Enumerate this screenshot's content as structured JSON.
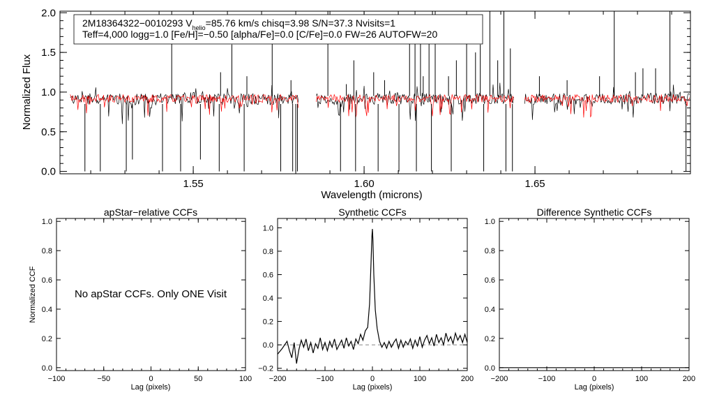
{
  "chart_data": [
    {
      "type": "line",
      "title": "",
      "xlabel": "Wavelength (microns)",
      "ylabel": "Normalized Flux",
      "xlim": [
        1.511,
        1.6955
      ],
      "ylim": [
        -0.03,
        2.02
      ],
      "xticks": [
        {
          "value": 1.55,
          "label": "1.55"
        },
        {
          "value": 1.6,
          "label": "1.60"
        },
        {
          "value": 1.65,
          "label": "1.65"
        }
      ],
      "yticks": [
        {
          "value": 0.0,
          "label": "0.0"
        },
        {
          "value": 0.5,
          "label": "0.5"
        },
        {
          "value": 1.0,
          "label": "1.0"
        },
        {
          "value": 1.5,
          "label": "1.5"
        },
        {
          "value": 2.0,
          "label": "2.0"
        }
      ],
      "info_box": {
        "line1_a": "2M18364322−0010293  V",
        "line1_sub": "helio",
        "line1_b": "=85.76 km/s  chisq=3.98  S/N=37.3  Nvisits=1",
        "line2": "Teff=4,000 logg=1.0 [Fe/H]=−0.50 [alpha/Fe]=0.0 [C/Fe]=0.0 FW=26 AUTOFW=20"
      },
      "chips": [
        [
          1.514,
          1.581
        ],
        [
          1.586,
          1.644
        ],
        [
          1.647,
          1.6955
        ]
      ],
      "series": [
        {
          "name": "observed spectrum",
          "color": "#000000",
          "continuum": 0.92
        },
        {
          "name": "synthetic model",
          "color": "#ff0000",
          "continuum": 0.92
        }
      ],
      "emission_spikes": [
        [
          1.5437,
          2.02
        ],
        [
          1.558,
          1.25
        ],
        [
          1.5613,
          1.6
        ],
        [
          1.5657,
          1.2
        ],
        [
          1.5731,
          1.75
        ],
        [
          1.5786,
          1.15
        ],
        [
          1.5894,
          2.02
        ],
        [
          1.5948,
          1.1
        ],
        [
          1.597,
          1.4
        ],
        [
          1.6028,
          1.25
        ],
        [
          1.606,
          1.15
        ],
        [
          1.6133,
          1.85
        ],
        [
          1.6149,
          2.02
        ],
        [
          1.6165,
          1.65
        ],
        [
          1.6173,
          1.2
        ],
        [
          1.619,
          1.9
        ],
        [
          1.6208,
          2.02
        ],
        [
          1.6247,
          1.2
        ],
        [
          1.627,
          1.4
        ],
        [
          1.63,
          1.9
        ],
        [
          1.6326,
          1.5
        ],
        [
          1.634,
          1.6
        ],
        [
          1.6368,
          2.02
        ],
        [
          1.6391,
          1.4
        ],
        [
          1.6409,
          2.02
        ],
        [
          1.6428,
          1.55
        ],
        [
          1.6513,
          1.2
        ],
        [
          1.6594,
          1.15
        ],
        [
          1.6689,
          1.2
        ],
        [
          1.6732,
          2.02
        ],
        [
          1.6794,
          1.25
        ],
        [
          1.6816,
          1.3
        ],
        [
          1.6853,
          1.3
        ],
        [
          1.6895,
          2.02
        ]
      ],
      "absorption_spikes": [
        [
          1.5183,
          0.0
        ],
        [
          1.5228,
          0.0
        ],
        [
          1.5304,
          0.0
        ],
        [
          1.5322,
          0.15
        ],
        [
          1.541,
          0.0
        ],
        [
          1.5463,
          0.0
        ],
        [
          1.5521,
          0.15
        ],
        [
          1.5576,
          0.0
        ],
        [
          1.5649,
          0.0
        ],
        [
          1.5756,
          0.0
        ],
        [
          1.5791,
          0.0
        ],
        [
          1.58,
          0.0
        ],
        [
          1.5805,
          0.0
        ],
        [
          1.5931,
          0.0
        ],
        [
          1.5975,
          0.0
        ],
        [
          1.6041,
          0.0
        ],
        [
          1.6102,
          0.0
        ],
        [
          1.6153,
          0.0
        ],
        [
          1.6197,
          0.0
        ],
        [
          1.6255,
          0.0
        ],
        [
          1.635,
          0.0
        ],
        [
          1.6415,
          0.0
        ],
        [
          1.6434,
          0.0
        ],
        [
          1.6942,
          0.0
        ]
      ]
    },
    {
      "type": "line",
      "title": "apStar−relative CCFs",
      "xlabel": "Lag (pixels)",
      "ylabel": "Normalized CCF",
      "xlim": [
        -100,
        100
      ],
      "ylim": [
        -0.02,
        1.02
      ],
      "xticks": [
        {
          "value": -100,
          "label": "−100"
        },
        {
          "value": -50,
          "label": "−50"
        },
        {
          "value": 0,
          "label": "0"
        },
        {
          "value": 50,
          "label": "50"
        },
        {
          "value": 100,
          "label": "100"
        }
      ],
      "yticks": [
        {
          "value": 0.0,
          "label": "0.0"
        },
        {
          "value": 0.2,
          "label": "0.2"
        },
        {
          "value": 0.4,
          "label": "0.4"
        },
        {
          "value": 0.6,
          "label": "0.6"
        },
        {
          "value": 0.8,
          "label": "0.8"
        },
        {
          "value": 1.0,
          "label": "1.0"
        }
      ],
      "annotation": "No apStar CCFs.  Only ONE Visit",
      "series": []
    },
    {
      "type": "line",
      "title": "Synthetic CCFs",
      "xlabel": "Lag (pixels)",
      "ylabel": "",
      "xlim": [
        -200,
        200
      ],
      "ylim": [
        -0.22,
        1.08
      ],
      "xticks": [
        {
          "value": -200,
          "label": "−200"
        },
        {
          "value": -100,
          "label": "−100"
        },
        {
          "value": 0,
          "label": "0"
        },
        {
          "value": 100,
          "label": "100"
        },
        {
          "value": 200,
          "label": "200"
        }
      ],
      "yticks": [
        {
          "value": -0.2,
          "label": "−0.2"
        },
        {
          "value": 0.0,
          "label": "0.0"
        },
        {
          "value": 0.2,
          "label": "0.2"
        },
        {
          "value": 0.4,
          "label": "0.4"
        },
        {
          "value": 0.6,
          "label": "0.6"
        },
        {
          "value": 0.8,
          "label": "0.8"
        },
        {
          "value": 1.0,
          "label": "1.0"
        }
      ],
      "zero_line": 0.0,
      "series": [
        {
          "name": "synthetic CCF",
          "x": [
            -200,
            -190,
            -180,
            -175,
            -170,
            -165,
            -160,
            -155,
            -150,
            -145,
            -140,
            -135,
            -130,
            -125,
            -120,
            -115,
            -110,
            -105,
            -100,
            -95,
            -90,
            -85,
            -80,
            -75,
            -70,
            -65,
            -60,
            -55,
            -50,
            -45,
            -40,
            -35,
            -30,
            -25,
            -20,
            -15,
            -10,
            -6,
            -3,
            -1,
            0,
            1,
            3,
            6,
            10,
            15,
            20,
            25,
            30,
            35,
            40,
            45,
            50,
            55,
            60,
            65,
            70,
            75,
            80,
            85,
            90,
            95,
            100,
            105,
            110,
            115,
            120,
            125,
            130,
            135,
            140,
            145,
            150,
            155,
            160,
            165,
            170,
            175,
            180,
            185,
            190,
            195,
            200
          ],
          "y": [
            -0.08,
            -0.03,
            0.03,
            -0.05,
            -0.11,
            0.02,
            -0.16,
            -0.04,
            0.04,
            -0.02,
            0.05,
            -0.05,
            0.02,
            -0.07,
            0.01,
            -0.03,
            0.06,
            -0.04,
            0.02,
            -0.05,
            0.03,
            -0.02,
            0.05,
            -0.04,
            0.0,
            0.04,
            -0.03,
            0.06,
            -0.01,
            0.03,
            -0.04,
            0.05,
            0.01,
            0.09,
            0.04,
            0.12,
            0.15,
            0.35,
            0.7,
            0.93,
            0.99,
            0.9,
            0.6,
            0.3,
            0.14,
            0.03,
            -0.02,
            0.02,
            -0.03,
            0.03,
            -0.02,
            0.02,
            0.05,
            -0.03,
            0.04,
            -0.02,
            0.03,
            0.0,
            0.05,
            -0.03,
            0.04,
            -0.01,
            0.07,
            -0.02,
            0.04,
            0.08,
            0.01,
            0.06,
            -0.01,
            0.09,
            0.02,
            0.06,
            0.0,
            0.1,
            0.03,
            0.07,
            0.01,
            0.1,
            0.04,
            0.08,
            0.02,
            0.09,
            0.02
          ]
        }
      ]
    },
    {
      "type": "line",
      "title": "Difference Synthetic CCFs",
      "xlabel": "Lag (pixels)",
      "ylabel": "",
      "xlim": [
        -200,
        200
      ],
      "ylim": [
        -0.02,
        1.02
      ],
      "xticks": [
        {
          "value": -200,
          "label": "−200"
        },
        {
          "value": -100,
          "label": "−100"
        },
        {
          "value": 0,
          "label": "0"
        },
        {
          "value": 100,
          "label": "100"
        },
        {
          "value": 200,
          "label": "200"
        }
      ],
      "yticks": [
        {
          "value": 0.0,
          "label": "0.0"
        },
        {
          "value": 0.2,
          "label": "0.2"
        },
        {
          "value": 0.4,
          "label": "0.4"
        },
        {
          "value": 0.6,
          "label": "0.6"
        },
        {
          "value": 0.8,
          "label": "0.8"
        },
        {
          "value": 1.0,
          "label": "1.0"
        }
      ],
      "series": [
        {
          "name": "difference CCF",
          "x": [
            -200,
            200
          ],
          "y": [
            0.0,
            0.0
          ]
        }
      ]
    }
  ]
}
